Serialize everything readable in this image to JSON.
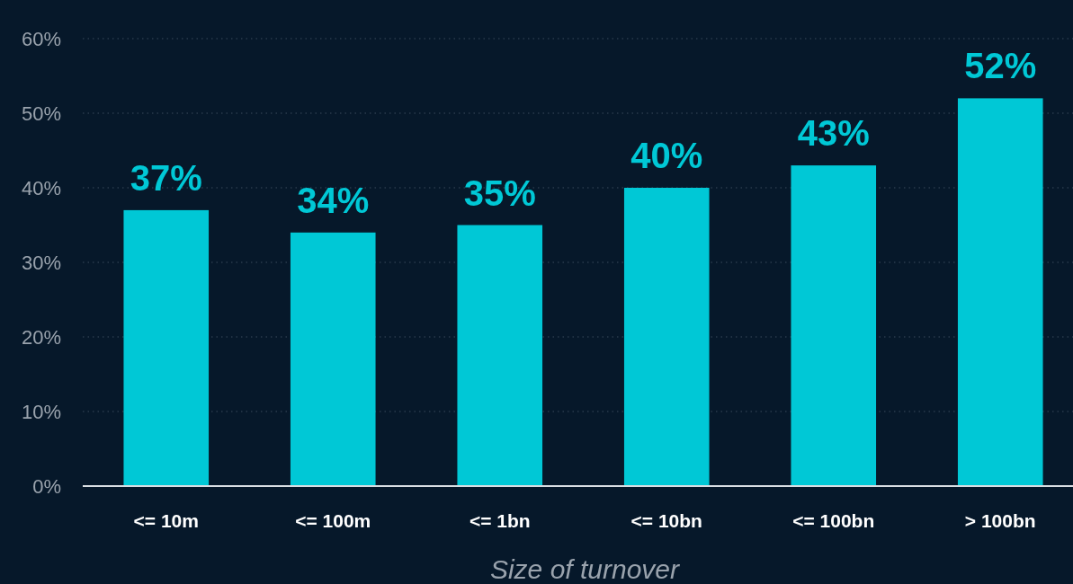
{
  "chart_data": {
    "type": "bar",
    "xlabel": "Size of turnover",
    "categories": [
      "<= 10m",
      "<= 100m",
      "<= 1bn",
      "<= 10bn",
      "<= 100bn",
      "> 100bn"
    ],
    "values": [
      37,
      34,
      35,
      40,
      43,
      52
    ],
    "color": "#00c8d6",
    "ylim": [
      0,
      60
    ],
    "yticks": [
      {
        "value": 0,
        "label": "0%"
      },
      {
        "value": 10,
        "label": "10%"
      },
      {
        "value": 20,
        "label": "20%"
      },
      {
        "value": 30,
        "label": "30%"
      },
      {
        "value": 40,
        "label": "40%"
      },
      {
        "value": 50,
        "label": "50%"
      },
      {
        "value": 60,
        "label": "60%"
      }
    ],
    "grid": "y",
    "data_labels": true,
    "value_labels": [
      "37%",
      "34%",
      "35%",
      "40%",
      "43%",
      "52%"
    ]
  }
}
